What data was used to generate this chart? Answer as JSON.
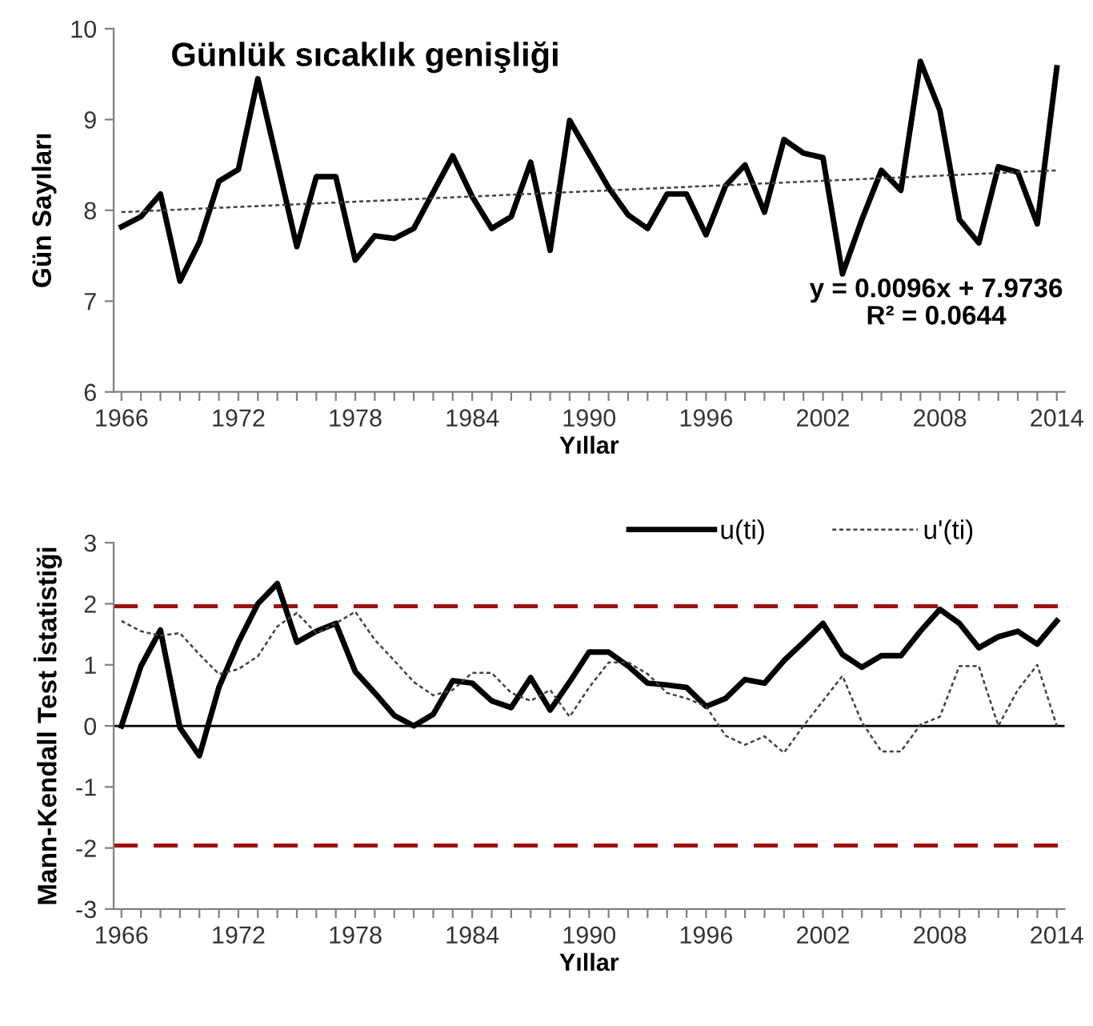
{
  "chart_data": [
    {
      "type": "line",
      "title": "Günlük sıcaklık genişliği",
      "xlabel": "Yıllar",
      "ylabel": "Gün Sayıları",
      "x": [
        1966,
        1967,
        1968,
        1969,
        1970,
        1971,
        1972,
        1973,
        1974,
        1975,
        1976,
        1977,
        1978,
        1979,
        1980,
        1981,
        1982,
        1983,
        1984,
        1985,
        1986,
        1987,
        1988,
        1989,
        1990,
        1991,
        1992,
        1993,
        1994,
        1995,
        1996,
        1997,
        1998,
        1999,
        2000,
        2001,
        2002,
        2003,
        2004,
        2005,
        2006,
        2007,
        2008,
        2009,
        2010,
        2011,
        2012,
        2013,
        2014
      ],
      "series": [
        {
          "color": "#000000",
          "line_style": "solid",
          "values": [
            7.82,
            7.93,
            8.18,
            7.22,
            7.65,
            8.32,
            8.45,
            9.45,
            8.53,
            7.6,
            8.37,
            8.37,
            7.45,
            7.72,
            7.69,
            7.8,
            8.2,
            8.6,
            8.15,
            7.8,
            7.93,
            8.53,
            7.56,
            8.99,
            8.62,
            8.25,
            7.95,
            7.8,
            8.18,
            8.18,
            7.73,
            8.27,
            8.5,
            7.98,
            8.78,
            8.63,
            8.58,
            7.3,
            7.9,
            8.44,
            8.22,
            9.64,
            9.1,
            7.9,
            7.64,
            8.48,
            8.42,
            7.85,
            9.57
          ]
        },
        {
          "color": "#404040",
          "line_style": "dotted",
          "x": [
            1966,
            2014
          ],
          "values": [
            7.98,
            8.44
          ]
        }
      ],
      "xlim": [
        1965.6,
        2014.4
      ],
      "ylim": [
        6,
        10
      ],
      "yticks": [
        6,
        7,
        8,
        9,
        10
      ],
      "xticks": [
        1966,
        {
          "value": 1967,
          "label": null
        },
        {
          "value": 1968,
          "label": null
        },
        {
          "value": 1969,
          "label": null
        },
        {
          "value": 1970,
          "label": null
        },
        {
          "value": 1971,
          "label": null
        },
        1972,
        {
          "value": 1973,
          "label": null
        },
        {
          "value": 1974,
          "label": null
        },
        {
          "value": 1975,
          "label": null
        },
        {
          "value": 1976,
          "label": null
        },
        {
          "value": 1977,
          "label": null
        },
        1978,
        {
          "value": 1979,
          "label": null
        },
        {
          "value": 1980,
          "label": null
        },
        {
          "value": 1981,
          "label": null
        },
        {
          "value": 1982,
          "label": null
        },
        {
          "value": 1983,
          "label": null
        },
        1984,
        {
          "value": 1985,
          "label": null
        },
        {
          "value": 1986,
          "label": null
        },
        {
          "value": 1987,
          "label": null
        },
        {
          "value": 1988,
          "label": null
        },
        {
          "value": 1989,
          "label": null
        },
        1990,
        {
          "value": 1991,
          "label": null
        },
        {
          "value": 1992,
          "label": null
        },
        {
          "value": 1993,
          "label": null
        },
        {
          "value": 1994,
          "label": null
        },
        {
          "value": 1995,
          "label": null
        },
        1996,
        {
          "value": 1997,
          "label": null
        },
        {
          "value": 1998,
          "label": null
        },
        {
          "value": 1999,
          "label": null
        },
        {
          "value": 2000,
          "label": null
        },
        {
          "value": 2001,
          "label": null
        },
        2002,
        {
          "value": 2003,
          "label": null
        },
        {
          "value": 2004,
          "label": null
        },
        {
          "value": 2005,
          "label": null
        },
        {
          "value": 2006,
          "label": null
        },
        {
          "value": 2007,
          "label": null
        },
        2008,
        {
          "value": 2009,
          "label": null
        },
        {
          "value": 2010,
          "label": null
        },
        {
          "value": 2011,
          "label": null
        },
        {
          "value": 2012,
          "label": null
        },
        {
          "value": 2013,
          "label": null
        },
        2014
      ],
      "annotations": [
        "y = 0.0096x + 7.9736",
        "R² = 0.0644"
      ],
      "grid": false,
      "legend": false,
      "marker": "none"
    },
    {
      "type": "line",
      "xlabel": "Yıllar",
      "ylabel": "Mann-Kendall Test İstatistiği",
      "x": [
        1966,
        1967,
        1968,
        1969,
        1970,
        1971,
        1972,
        1973,
        1974,
        1975,
        1976,
        1977,
        1978,
        1979,
        1980,
        1981,
        1982,
        1983,
        1984,
        1985,
        1986,
        1987,
        1988,
        1989,
        1990,
        1991,
        1992,
        1993,
        1994,
        1995,
        1996,
        1997,
        1998,
        1999,
        2000,
        2001,
        2002,
        2003,
        2004,
        2005,
        2006,
        2007,
        2008,
        2009,
        2010,
        2011,
        2012,
        2013,
        2014
      ],
      "series": [
        {
          "name": "u(ti)",
          "color": "#000000",
          "line_style": "solid",
          "values": [
            0,
            0.98,
            1.57,
            -0.03,
            -0.49,
            0.63,
            1.37,
            2.0,
            2.33,
            1.37,
            1.55,
            1.68,
            0.89,
            0.54,
            0.17,
            0,
            0.19,
            0.74,
            0.7,
            0.41,
            0.3,
            0.79,
            0.26,
            0.72,
            1.21,
            1.21,
            0.98,
            0.7,
            0.67,
            0.63,
            0.32,
            0.45,
            0.76,
            0.7,
            1.07,
            1.37,
            1.68,
            1.17,
            0.96,
            1.15,
            1.15,
            1.55,
            1.91,
            1.68,
            1.28,
            1.46,
            1.55,
            1.34,
            1.72
          ]
        },
        {
          "name": "u'(ti)",
          "color": "#404040",
          "line_style": "dotted",
          "values": [
            1.72,
            1.55,
            1.48,
            1.52,
            1.17,
            0.85,
            0.93,
            1.14,
            1.63,
            1.85,
            1.52,
            1.68,
            1.87,
            1.41,
            1.07,
            0.72,
            0.5,
            0.59,
            0.87,
            0.87,
            0.54,
            0.41,
            0.59,
            0.15,
            0.63,
            1.04,
            1.04,
            0.85,
            0.54,
            0.45,
            0.32,
            -0.16,
            -0.31,
            -0.17,
            -0.44,
            0,
            0.41,
            0.82,
            0.06,
            -0.42,
            -0.42,
            0.02,
            0.15,
            0.98,
            0.98,
            0,
            0.59,
            1.0,
            0
          ]
        }
      ],
      "xlim": [
        1965.6,
        2014.4
      ],
      "ylim": [
        -3,
        3
      ],
      "yticks": [
        -3,
        -2,
        -1,
        0,
        1,
        2,
        3
      ],
      "xticks": [
        1966,
        {
          "value": 1967,
          "label": null
        },
        {
          "value": 1968,
          "label": null
        },
        {
          "value": 1969,
          "label": null
        },
        {
          "value": 1970,
          "label": null
        },
        {
          "value": 1971,
          "label": null
        },
        1972,
        {
          "value": 1973,
          "label": null
        },
        {
          "value": 1974,
          "label": null
        },
        {
          "value": 1975,
          "label": null
        },
        {
          "value": 1976,
          "label": null
        },
        {
          "value": 1977,
          "label": null
        },
        1978,
        {
          "value": 1979,
          "label": null
        },
        {
          "value": 1980,
          "label": null
        },
        {
          "value": 1981,
          "label": null
        },
        {
          "value": 1982,
          "label": null
        },
        {
          "value": 1983,
          "label": null
        },
        1984,
        {
          "value": 1985,
          "label": null
        },
        {
          "value": 1986,
          "label": null
        },
        {
          "value": 1987,
          "label": null
        },
        {
          "value": 1988,
          "label": null
        },
        {
          "value": 1989,
          "label": null
        },
        1990,
        {
          "value": 1991,
          "label": null
        },
        {
          "value": 1992,
          "label": null
        },
        {
          "value": 1993,
          "label": null
        },
        {
          "value": 1994,
          "label": null
        },
        {
          "value": 1995,
          "label": null
        },
        1996,
        {
          "value": 1997,
          "label": null
        },
        {
          "value": 1998,
          "label": null
        },
        {
          "value": 1999,
          "label": null
        },
        {
          "value": 2000,
          "label": null
        },
        {
          "value": 2001,
          "label": null
        },
        2002,
        {
          "value": 2003,
          "label": null
        },
        {
          "value": 2004,
          "label": null
        },
        {
          "value": 2005,
          "label": null
        },
        {
          "value": 2006,
          "label": null
        },
        {
          "value": 2007,
          "label": null
        },
        2008,
        {
          "value": 2009,
          "label": null
        },
        {
          "value": 2010,
          "label": null
        },
        {
          "value": 2011,
          "label": null
        },
        {
          "value": 2012,
          "label": null
        },
        {
          "value": 2013,
          "label": null
        },
        2014
      ],
      "ref_lines": [
        {
          "axis": "y",
          "value": 1.96,
          "color": "#a01010",
          "line_style": "dashed"
        },
        {
          "axis": "y",
          "value": -1.96,
          "color": "#a01010",
          "line_style": "dashed"
        },
        {
          "axis": "y",
          "value": 0,
          "color": "#000000",
          "line_style": "solid"
        }
      ],
      "grid": false,
      "legend": "top right",
      "marker": "none"
    }
  ]
}
